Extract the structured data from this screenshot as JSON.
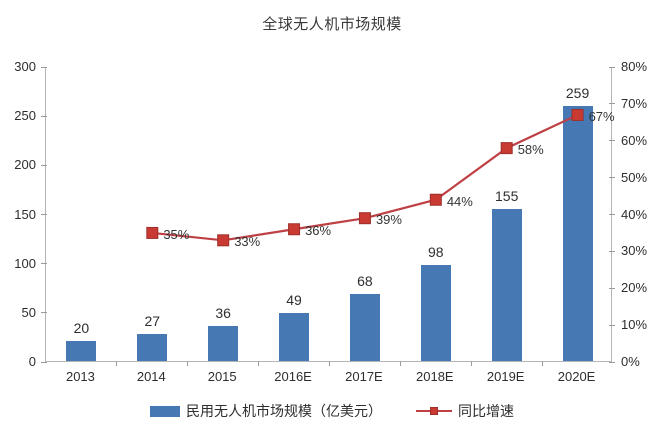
{
  "title": "全球无人机市场规模",
  "legend": {
    "bar": "民用无人机市场规模（亿美元）",
    "line": "同比增速"
  },
  "colors": {
    "bar": "#4678b4",
    "line": "#be4045",
    "marker_fill": "#c93a33",
    "marker_edge": "#9e2f2c",
    "axis": "#b5b5b5",
    "tick": "#9a9a9a",
    "text": "#2e2e2e"
  },
  "chart_data": {
    "type": "bar+line",
    "title": "全球无人机市场规模",
    "categories": [
      "2013",
      "2014",
      "2015",
      "2016E",
      "2017E",
      "2018E",
      "2019E",
      "2020E"
    ],
    "series": [
      {
        "name": "民用无人机市场规模（亿美元）",
        "type": "bar",
        "axis": "left",
        "values": [
          20,
          27,
          36,
          49,
          68,
          98,
          155,
          259
        ]
      },
      {
        "name": "同比增速",
        "type": "line",
        "axis": "right",
        "unit": "%",
        "values": [
          null,
          35,
          33,
          36,
          39,
          44,
          58,
          67
        ],
        "labels": [
          null,
          "35%",
          "33%",
          "36%",
          "39%",
          "44%",
          "58%",
          "67%"
        ]
      }
    ],
    "left_axis": {
      "min": 0,
      "max": 300,
      "step": 50,
      "ticks": [
        "0",
        "50",
        "100",
        "150",
        "200",
        "250",
        "300"
      ]
    },
    "right_axis": {
      "min": 0,
      "max": 80,
      "step": 10,
      "ticks": [
        "0%",
        "10%",
        "20%",
        "30%",
        "40%",
        "50%",
        "60%",
        "70%",
        "80%"
      ]
    },
    "grid": false,
    "legend_position": "bottom"
  }
}
